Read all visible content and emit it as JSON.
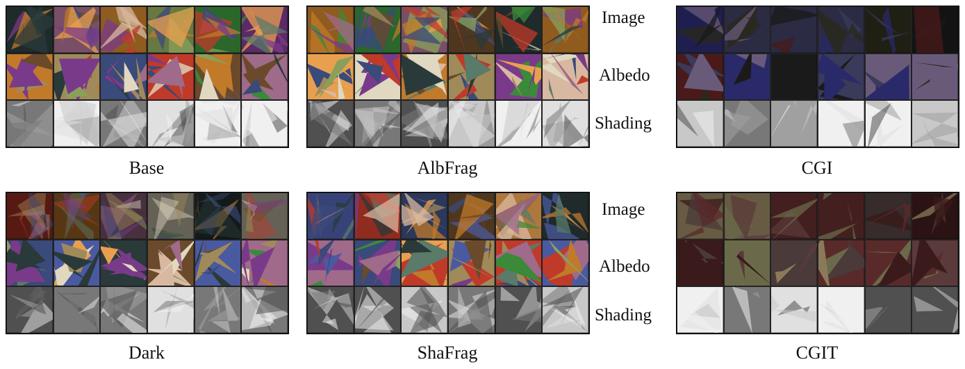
{
  "panels": [
    {
      "id": "base",
      "caption": "Base",
      "kind": "synthetic"
    },
    {
      "id": "albfrag",
      "caption": "AlbFrag",
      "kind": "synthetic"
    },
    {
      "id": "cgi",
      "caption": "CGI",
      "kind": "render"
    },
    {
      "id": "dark",
      "caption": "Dark",
      "kind": "synthetic"
    },
    {
      "id": "shafrag",
      "caption": "ShaFrag",
      "kind": "synthetic"
    },
    {
      "id": "cgit",
      "caption": "CGIT",
      "kind": "render"
    }
  ],
  "row_labels": {
    "image": "Image",
    "albedo": "Albedo",
    "shading": "Shading"
  },
  "palette": {
    "synthetic_colors": [
      "#7a3a8a",
      "#c07a2a",
      "#5a7a6a",
      "#3a4a7a",
      "#a08a5a",
      "#8aa05a",
      "#d8b8a0",
      "#3a8a3a",
      "#c03a2a",
      "#e0d8c0",
      "#6a4a2a",
      "#4a5aa0",
      "#a06a8a",
      "#2a3a3a",
      "#e8a050"
    ],
    "cgi_colors": [
      "#2a2a1a",
      "#6a5a7a",
      "#2a2a6a",
      "#4a1a1a",
      "#3a3a5a",
      "#1a1a1a"
    ],
    "cgit_colors": [
      "#8a7a5a",
      "#5a2a2a",
      "#4a3a3a",
      "#6a6a4a",
      "#3a1a1a",
      "#5a3a3a"
    ]
  }
}
